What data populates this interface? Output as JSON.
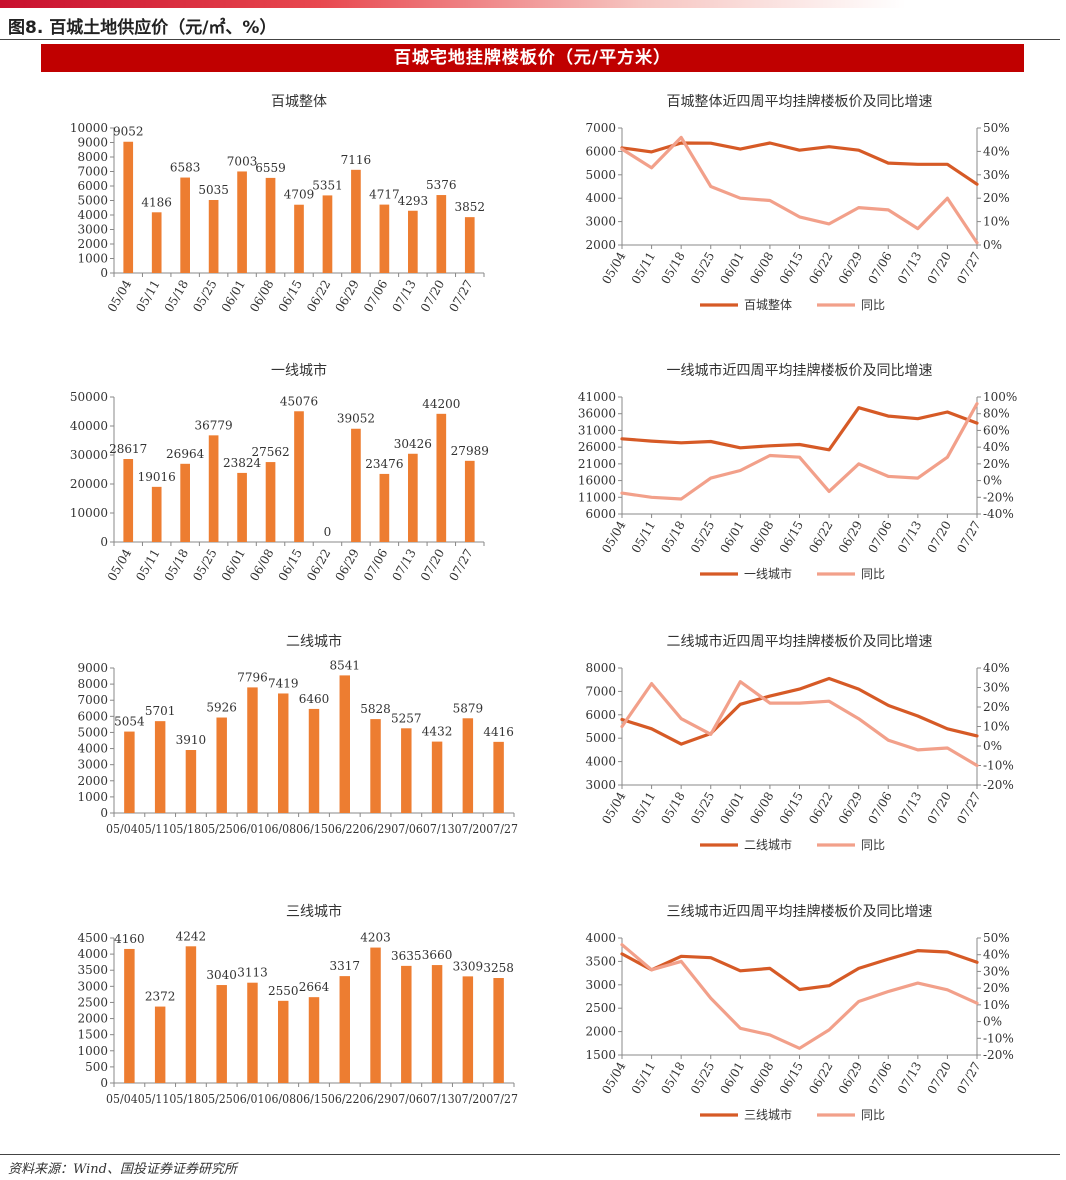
{
  "figure_title": "图8. 百城土地供应价（元/㎡、%）",
  "banner_title": "百城宅地挂牌楼板价（元/平方米）",
  "source_note": "资料来源：Wind、国投证券证券研究所",
  "colors": {
    "bar": "#ed7d31",
    "line_main": "#d65a26",
    "line_yoy": "#f2a08a",
    "banner": "#c00000"
  },
  "chart_data": [
    {
      "type": "bar",
      "title": "百城整体",
      "categories": [
        "05/04",
        "05/11",
        "05/18",
        "05/25",
        "06/01",
        "06/08",
        "06/15",
        "06/22",
        "06/29",
        "07/06",
        "07/13",
        "07/20",
        "07/27"
      ],
      "values": [
        9052,
        4186,
        6583,
        5035,
        7003,
        6559,
        4709,
        5351,
        7116,
        4717,
        4293,
        5376,
        3852
      ],
      "ylim": [
        0,
        10000
      ],
      "ytick_labels": [
        "0",
        "1000",
        "2000",
        "3000",
        "4000",
        "5000",
        "6000",
        "7000",
        "8000",
        "9000",
        "10000"
      ],
      "data_labels": true,
      "xtick_rotated": true
    },
    {
      "type": "line",
      "title": "百城整体近四周平均挂牌楼板价及同比增速",
      "categories": [
        "05/04",
        "05/11",
        "05/18",
        "05/25",
        "06/01",
        "06/08",
        "06/15",
        "06/22",
        "06/29",
        "07/06",
        "07/13",
        "07/20",
        "07/27"
      ],
      "series": [
        {
          "name": "百城整体",
          "axis": "left",
          "values": [
            6150,
            5980,
            6360,
            6350,
            6100,
            6360,
            6050,
            6200,
            6050,
            5500,
            5450,
            5450,
            4600
          ]
        },
        {
          "name": "同比",
          "axis": "right",
          "values": [
            41,
            33,
            46,
            25,
            20,
            19,
            12,
            9,
            16,
            15,
            7,
            20,
            1
          ]
        }
      ],
      "ylim_left": [
        2000,
        7000
      ],
      "ytick_labels_left": [
        "2000",
        "3000",
        "4000",
        "5000",
        "6000",
        "7000"
      ],
      "ylim_right": [
        0,
        50
      ],
      "ytick_labels_right": [
        "0%",
        "10%",
        "20%",
        "30%",
        "40%",
        "50%"
      ],
      "legend": "bottom"
    },
    {
      "type": "bar",
      "title": "一线城市",
      "categories": [
        "05/04",
        "05/11",
        "05/18",
        "05/25",
        "06/01",
        "06/08",
        "06/15",
        "06/22",
        "06/29",
        "07/06",
        "07/13",
        "07/20",
        "07/27"
      ],
      "values": [
        28617,
        19016,
        26964,
        36779,
        23824,
        27562,
        45076,
        0,
        39052,
        23476,
        30426,
        44200,
        27989
      ],
      "ylim": [
        0,
        50000
      ],
      "ytick_labels": [
        "0",
        "10000",
        "20000",
        "30000",
        "40000",
        "50000"
      ],
      "data_labels": true,
      "xtick_rotated": true
    },
    {
      "type": "line",
      "title": "一线城市近四周平均挂牌楼板价及同比增速",
      "categories": [
        "05/04",
        "05/11",
        "05/18",
        "05/25",
        "06/01",
        "06/08",
        "06/15",
        "06/22",
        "06/29",
        "07/06",
        "07/13",
        "07/20",
        "07/27"
      ],
      "series": [
        {
          "name": "一线城市",
          "axis": "left",
          "values": [
            28500,
            27800,
            27300,
            27700,
            25800,
            26400,
            26800,
            25200,
            37800,
            35300,
            34500,
            36500,
            33200
          ]
        },
        {
          "name": "同比",
          "axis": "right",
          "values": [
            -15,
            -20,
            -22,
            3,
            12,
            30,
            28,
            -13,
            20,
            5,
            3,
            28,
            92
          ]
        }
      ],
      "ylim_left": [
        6000,
        41000
      ],
      "ytick_labels_left": [
        "6000",
        "11000",
        "16000",
        "21000",
        "26000",
        "31000",
        "36000",
        "41000"
      ],
      "ylim_right": [
        -40,
        100
      ],
      "ytick_labels_right": [
        "-40%",
        "-20%",
        "0%",
        "20%",
        "40%",
        "60%",
        "80%",
        "100%"
      ],
      "legend": "bottom"
    },
    {
      "type": "bar",
      "title": "二线城市",
      "categories": [
        "05/04",
        "05/11",
        "05/18",
        "05/25",
        "06/01",
        "06/08",
        "06/15",
        "06/22",
        "06/29",
        "07/06",
        "07/13",
        "07/20",
        "07/27"
      ],
      "values": [
        5054,
        5701,
        3910,
        5926,
        7796,
        7419,
        6460,
        8541,
        5828,
        5257,
        4432,
        5879,
        4416
      ],
      "ylim": [
        0,
        9000
      ],
      "ytick_labels": [
        "0",
        "1000",
        "2000",
        "3000",
        "4000",
        "5000",
        "6000",
        "7000",
        "8000",
        "9000"
      ],
      "data_labels": true,
      "xtick_text": "05/0405/1105/1805/2506/0106/0806/1506/2206/2907/0607/1307/2007/27",
      "xtick_rotated": false
    },
    {
      "type": "line",
      "title": "二线城市近四周平均挂牌楼板价及同比增速",
      "categories": [
        "05/04",
        "05/11",
        "05/18",
        "05/25",
        "06/01",
        "06/08",
        "06/15",
        "06/22",
        "06/29",
        "07/06",
        "07/13",
        "07/20",
        "07/27"
      ],
      "series": [
        {
          "name": "二线城市",
          "axis": "left",
          "values": [
            5800,
            5400,
            4750,
            5200,
            6450,
            6800,
            7100,
            7550,
            7100,
            6400,
            5950,
            5400,
            5100
          ]
        },
        {
          "name": "同比",
          "axis": "right",
          "values": [
            10,
            32,
            14,
            6,
            33,
            22,
            22,
            23,
            14,
            3,
            -2,
            -1,
            -10
          ]
        }
      ],
      "ylim_left": [
        3000,
        8000
      ],
      "ytick_labels_left": [
        "3000",
        "4000",
        "5000",
        "6000",
        "7000",
        "8000"
      ],
      "ylim_right": [
        -20,
        40
      ],
      "ytick_labels_right": [
        "-20%",
        "-10%",
        "0%",
        "10%",
        "20%",
        "30%",
        "40%"
      ],
      "legend": "bottom"
    },
    {
      "type": "bar",
      "title": "三线城市",
      "categories": [
        "05/04",
        "05/11",
        "05/18",
        "05/25",
        "06/01",
        "06/08",
        "06/15",
        "06/22",
        "06/29",
        "07/06",
        "07/13",
        "07/20",
        "07/27"
      ],
      "values": [
        4160,
        2372,
        4242,
        3040,
        3113,
        2550,
        2664,
        3317,
        4203,
        3635,
        3660,
        3309,
        3258
      ],
      "ylim": [
        0,
        4500
      ],
      "ytick_labels": [
        "0",
        "500",
        "1000",
        "1500",
        "2000",
        "2500",
        "3000",
        "3500",
        "4000",
        "4500"
      ],
      "data_labels": true,
      "xtick_text": "05/0405/1105/1805/2506/0106/0806/1506/2206/2907/0607/1307/2007/27",
      "xtick_rotated": false
    },
    {
      "type": "line",
      "title": "三线城市近四周平均挂牌楼板价及同比增速",
      "categories": [
        "05/04",
        "05/11",
        "05/18",
        "05/25",
        "06/01",
        "06/08",
        "06/15",
        "06/22",
        "06/29",
        "07/06",
        "07/13",
        "07/20",
        "07/27"
      ],
      "series": [
        {
          "name": "三线城市",
          "axis": "left",
          "values": [
            3660,
            3320,
            3610,
            3580,
            3300,
            3350,
            2900,
            2980,
            3350,
            3550,
            3730,
            3700,
            3480
          ]
        },
        {
          "name": "同比",
          "axis": "right",
          "values": [
            46,
            31,
            36,
            14,
            -4,
            -8,
            -16,
            -5,
            12,
            18,
            23,
            19,
            11
          ]
        }
      ],
      "ylim_left": [
        1500,
        4000
      ],
      "ytick_labels_left": [
        "1500",
        "2000",
        "2500",
        "3000",
        "3500",
        "4000"
      ],
      "ylim_right": [
        -20,
        50
      ],
      "ytick_labels_right": [
        "-20%",
        "-10%",
        "0%",
        "10%",
        "20%",
        "30%",
        "40%",
        "50%"
      ],
      "legend": "bottom"
    }
  ]
}
